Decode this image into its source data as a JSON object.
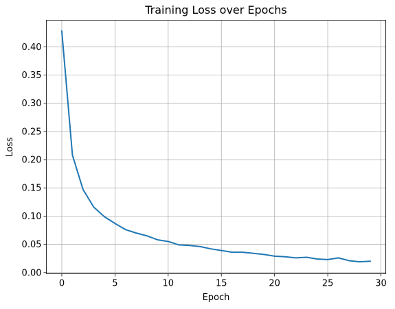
{
  "chart_data": {
    "type": "line",
    "title": "Training Loss over Epochs",
    "xlabel": "Epoch",
    "ylabel": "Loss",
    "xlim": [
      -1.45,
      30.45
    ],
    "ylim": [
      -0.0021,
      0.4471
    ],
    "xticks": [
      0,
      5,
      10,
      15,
      20,
      25,
      30
    ],
    "xtick_labels": [
      "0",
      "5",
      "10",
      "15",
      "20",
      "25",
      "30"
    ],
    "yticks": [
      0.0,
      0.05,
      0.1,
      0.15,
      0.2,
      0.25,
      0.3,
      0.35,
      0.4
    ],
    "ytick_labels": [
      "0.00",
      "0.05",
      "0.10",
      "0.15",
      "0.20",
      "0.25",
      "0.30",
      "0.35",
      "0.40"
    ],
    "grid": true,
    "series": [
      {
        "color": "#1f77b4",
        "x": [
          0,
          1,
          2,
          3,
          4,
          5,
          6,
          7,
          8,
          9,
          10,
          11,
          12,
          13,
          14,
          15,
          16,
          17,
          18,
          19,
          20,
          21,
          22,
          23,
          24,
          25,
          26,
          27,
          28,
          29
        ],
        "y": [
          0.428,
          0.208,
          0.147,
          0.116,
          0.099,
          0.087,
          0.076,
          0.07,
          0.065,
          0.058,
          0.055,
          0.049,
          0.048,
          0.046,
          0.042,
          0.039,
          0.036,
          0.036,
          0.034,
          0.032,
          0.029,
          0.028,
          0.026,
          0.027,
          0.024,
          0.023,
          0.026,
          0.021,
          0.019,
          0.02
        ]
      }
    ]
  }
}
